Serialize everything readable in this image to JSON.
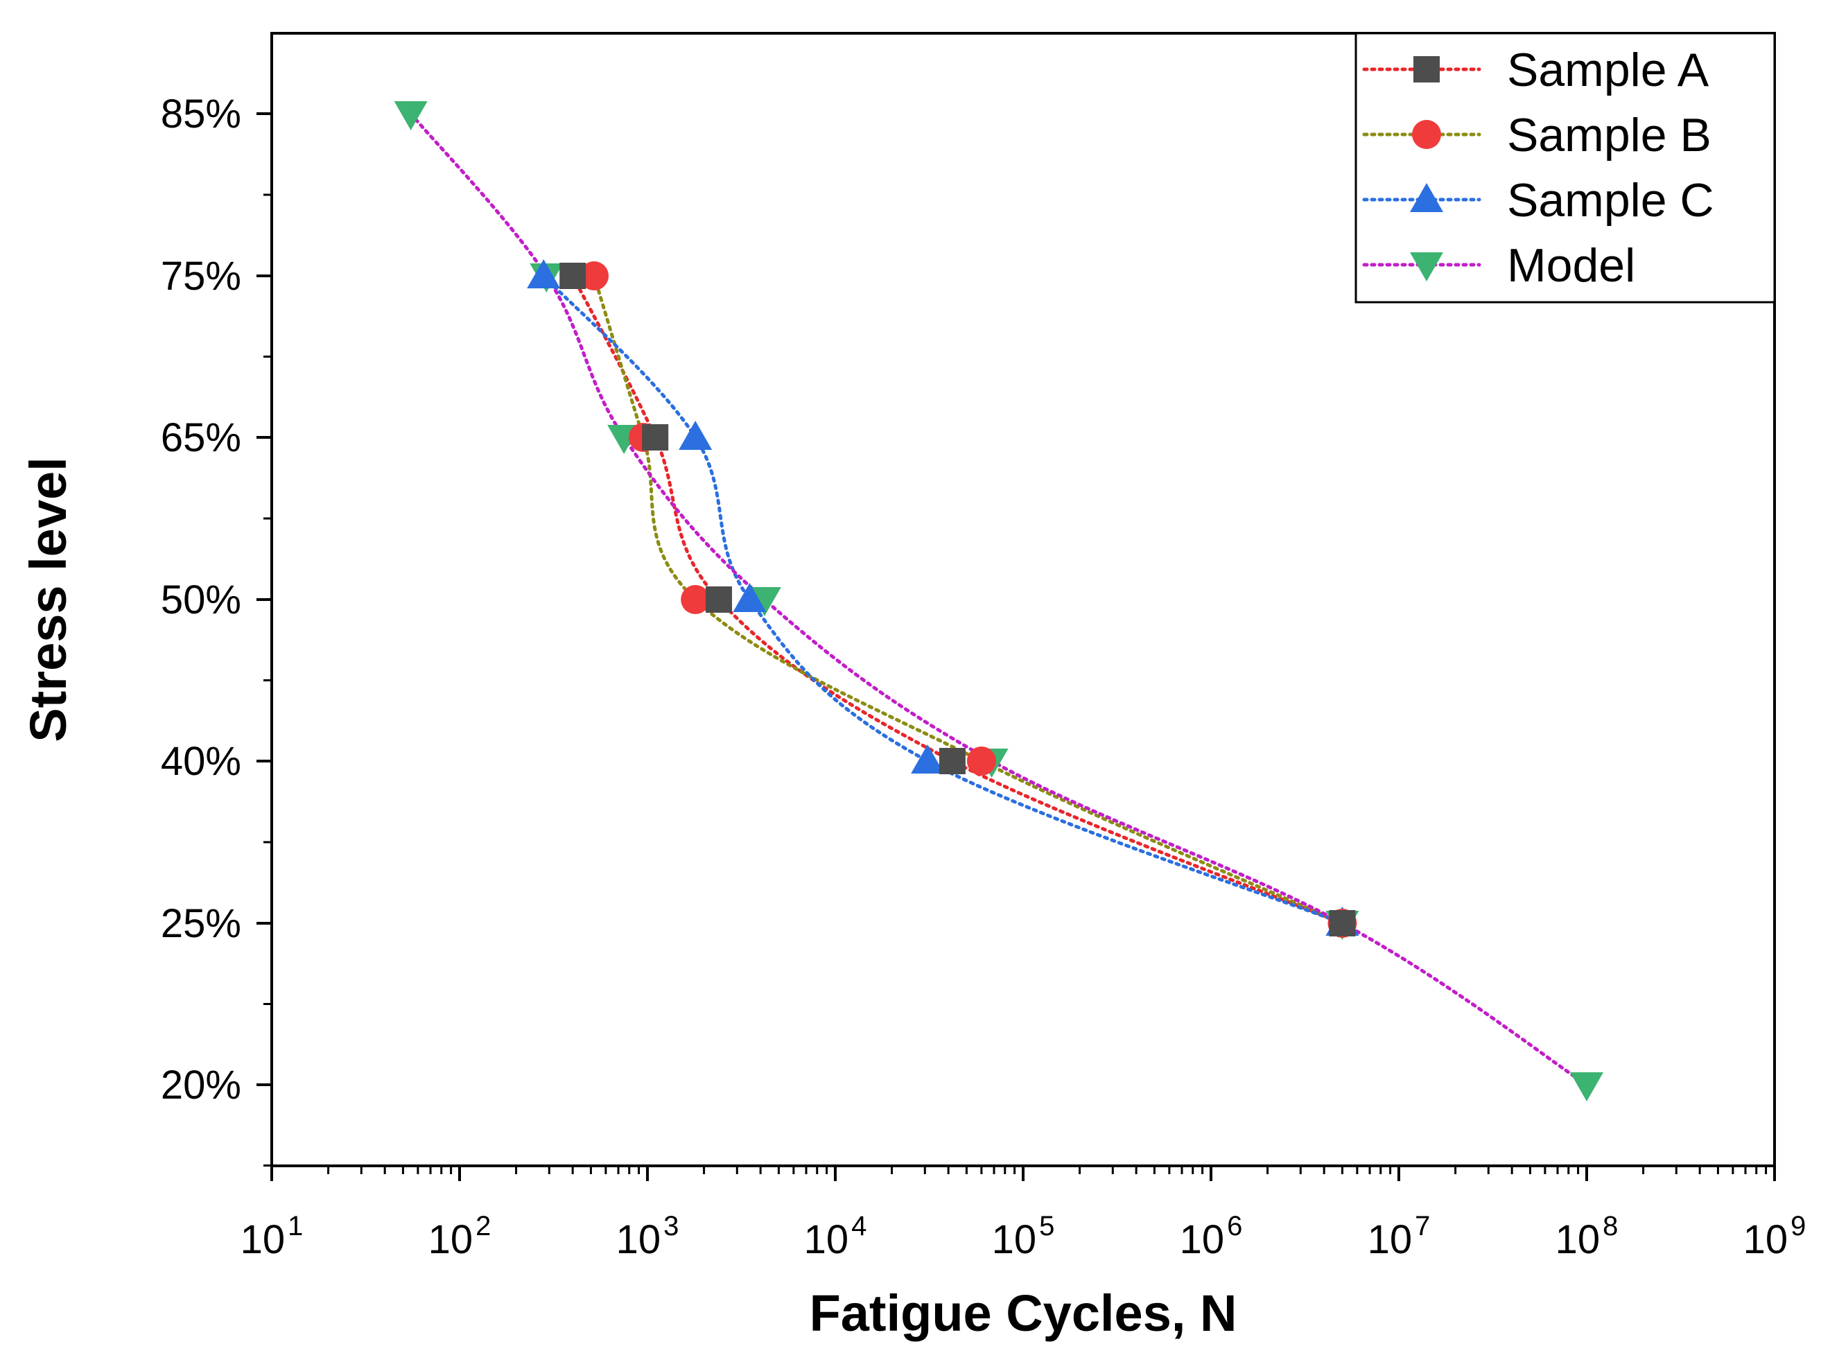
{
  "chart_data": {
    "type": "scatter",
    "title": "",
    "xlabel": "Fatigue Cycles, N",
    "ylabel": "Stress level",
    "x_scale": "log",
    "x_tick_labels": [
      {
        "base": "10",
        "exp": "1"
      },
      {
        "base": "10",
        "exp": "2"
      },
      {
        "base": "10",
        "exp": "3"
      },
      {
        "base": "10",
        "exp": "4"
      },
      {
        "base": "10",
        "exp": "5"
      },
      {
        "base": "10",
        "exp": "6"
      },
      {
        "base": "10",
        "exp": "7"
      },
      {
        "base": "10",
        "exp": "8"
      },
      {
        "base": "10",
        "exp": "9"
      }
    ],
    "y_categories": [
      "20%",
      "25%",
      "40%",
      "50%",
      "65%",
      "75%",
      "85%"
    ],
    "legend_position": "top-right",
    "grid": false,
    "series": [
      {
        "name": "Sample A",
        "color": "#e8262b",
        "marker_color": "#4d4d4d",
        "marker": "square",
        "points": [
          {
            "x": 400,
            "y": "75%"
          },
          {
            "x": 1100,
            "y": "65%"
          },
          {
            "x": 2400,
            "y": "50%"
          },
          {
            "x": 42000,
            "y": "40%"
          },
          {
            "x": 5000000,
            "y": "25%"
          }
        ]
      },
      {
        "name": "Sample B",
        "color": "#8c8c14",
        "marker_color": "#ef3b3b",
        "marker": "circle",
        "points": [
          {
            "x": 520,
            "y": "75%"
          },
          {
            "x": 950,
            "y": "65%"
          },
          {
            "x": 1800,
            "y": "50%"
          },
          {
            "x": 60000,
            "y": "40%"
          },
          {
            "x": 5000000,
            "y": "25%"
          }
        ]
      },
      {
        "name": "Sample C",
        "color": "#2b6fe0",
        "marker_color": "#2b6fe0",
        "marker": "triangle-up",
        "points": [
          {
            "x": 280,
            "y": "75%"
          },
          {
            "x": 1800,
            "y": "65%"
          },
          {
            "x": 3500,
            "y": "50%"
          },
          {
            "x": 31000,
            "y": "40%"
          },
          {
            "x": 5000000,
            "y": "25%"
          }
        ]
      },
      {
        "name": "Model",
        "color": "#c21ec9",
        "marker_color": "#3cb371",
        "marker": "triangle-down",
        "points": [
          {
            "x": 55,
            "y": "85%"
          },
          {
            "x": 290,
            "y": "75%"
          },
          {
            "x": 750,
            "y": "65%"
          },
          {
            "x": 4200,
            "y": "50%"
          },
          {
            "x": 68000,
            "y": "40%"
          },
          {
            "x": 5000000,
            "y": "25%"
          },
          {
            "x": 100000000,
            "y": "20%"
          }
        ]
      }
    ]
  }
}
